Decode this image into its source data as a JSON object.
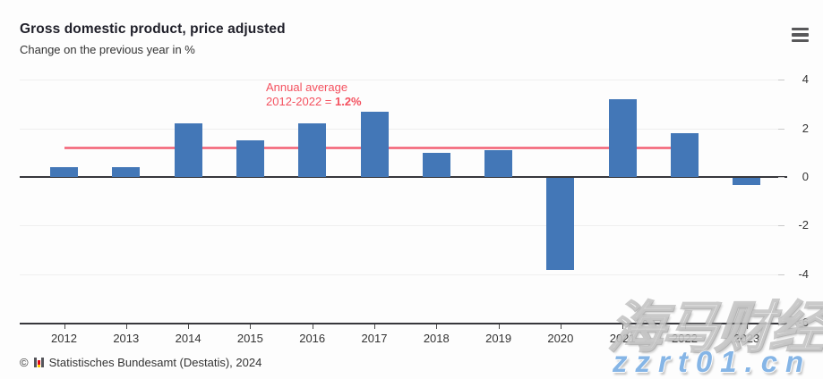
{
  "header": {
    "title": "Gross domestic product, price adjusted",
    "subtitle": "Change on the previous year in %"
  },
  "menu": {
    "icon": "hamburger-menu-icon"
  },
  "chart_data": {
    "type": "bar",
    "categories": [
      "2012",
      "2013",
      "2014",
      "2015",
      "2016",
      "2017",
      "2018",
      "2019",
      "2020",
      "2021",
      "2022",
      "2023"
    ],
    "values": [
      0.4,
      0.4,
      2.2,
      1.5,
      2.2,
      2.7,
      1.0,
      1.1,
      -3.8,
      3.2,
      1.8,
      -0.3
    ],
    "title": "Gross domestic product, price adjusted",
    "subtitle": "Change on the previous year in %",
    "xlabel": "",
    "ylabel": "",
    "ylim": [
      -6,
      4
    ],
    "yticks": [
      4,
      2,
      0,
      -2,
      -4,
      -6
    ],
    "y_axis_side": "right",
    "grid": true,
    "bar_color": "#4377b7",
    "average_line": {
      "value": 1.2,
      "from_category": "2012",
      "to_category": "2022",
      "color": "#f25c70"
    },
    "annotation": {
      "line1": "Annual average",
      "line2_prefix": "2012-2022 = ",
      "line2_value": "1.2%",
      "color": "#f4515f"
    }
  },
  "footer": {
    "copyright_symbol": "©",
    "logo": "destatis-bar-chart-logo",
    "source": "Statistisches Bundesamt (Destatis), 2024"
  },
  "watermarks": {
    "cjk_text": "海马财经",
    "url_text": "zzrt01.cn",
    "url_color": "#85b5e6"
  }
}
